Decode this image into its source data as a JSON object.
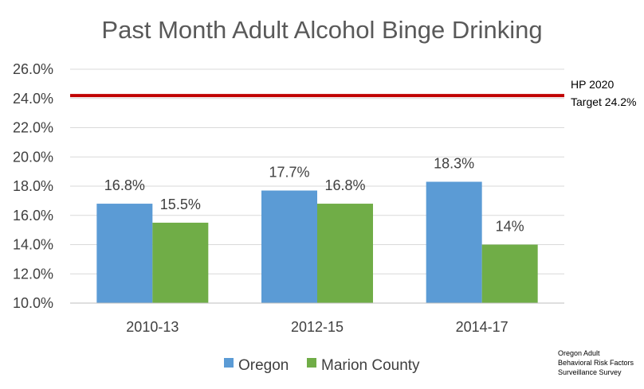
{
  "chart_data": {
    "type": "bar",
    "title": "Past Month Adult Alcohol Binge Drinking",
    "categories": [
      "2010-13",
      "2012-15",
      "2014-17"
    ],
    "series": [
      {
        "name": "Oregon",
        "color": "#5b9bd5",
        "values": [
          16.8,
          17.7,
          18.3
        ],
        "labels": [
          "16.8%",
          "17.7%",
          "18.3%"
        ]
      },
      {
        "name": "Marion County",
        "color": "#70ad47",
        "values": [
          15.5,
          16.8,
          14.0
        ],
        "labels": [
          "15.5%",
          "16.8%",
          "14%"
        ]
      }
    ],
    "ylim": [
      10,
      26
    ],
    "yticks": [
      10,
      12,
      14,
      16,
      18,
      20,
      22,
      24,
      26
    ],
    "ytick_labels": [
      "10.0%",
      "12.0%",
      "14.0%",
      "16.0%",
      "18.0%",
      "20.0%",
      "22.0%",
      "24.0%",
      "26.0%"
    ],
    "xlabel": "",
    "ylabel": "",
    "grid": true,
    "legend_position": "bottom",
    "target": {
      "value": 24.2,
      "color": "#c00000",
      "label_line1": "HP 2020",
      "label_line2": "Target 24.2%"
    }
  },
  "source_note": {
    "line1": "Oregon Adult",
    "line2": "Behavioral Risk Factors",
    "line3": "Surveillance Survey"
  },
  "colors": {
    "grid": "#d9d9d9",
    "axis": "#bfbfbf"
  }
}
